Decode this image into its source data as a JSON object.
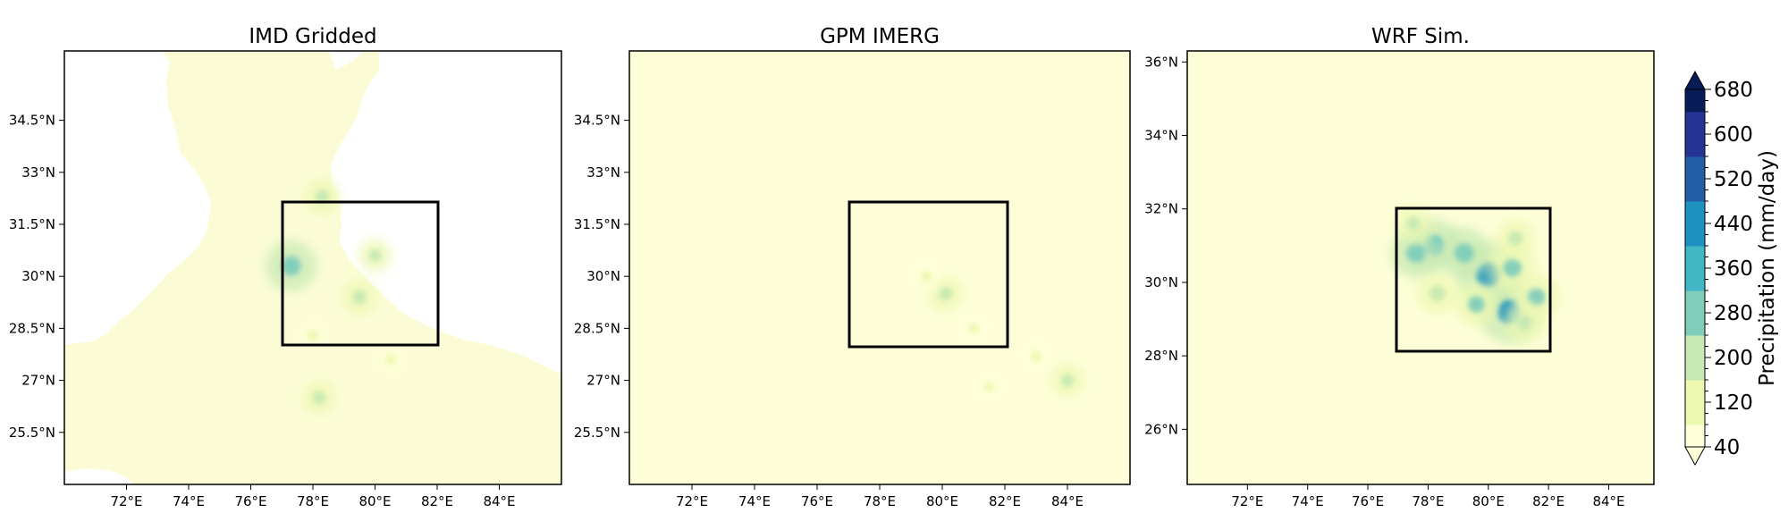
{
  "chart_data": [
    {
      "type": "heatmap",
      "title": "IMD Gridded",
      "xlim": [
        70,
        86
      ],
      "ylim": [
        24,
        36.5
      ],
      "x_ticks": [
        72,
        74,
        76,
        78,
        80,
        82,
        84
      ],
      "y_ticks": [
        25.5,
        27,
        28.5,
        30,
        31.5,
        33,
        34.5
      ],
      "x_tick_labels": [
        "72°E",
        "74°E",
        "76°E",
        "78°E",
        "80°E",
        "82°E",
        "84°E"
      ],
      "y_tick_labels": [
        "25.5°N",
        "27°N",
        "28.5°N",
        "30°N",
        "31.5°N",
        "33°N",
        "34.5°N"
      ],
      "box": {
        "lon": [
          77,
          82
        ],
        "lat": [
          28,
          32
        ]
      },
      "masked_region": "no data outside India land area (white)",
      "hotspots": [
        {
          "lon": 77.3,
          "lat": 30.3,
          "value": 300
        },
        {
          "lon": 78.3,
          "lat": 32.3,
          "value": 180
        },
        {
          "lon": 80.0,
          "lat": 30.6,
          "value": 160
        },
        {
          "lon": 79.5,
          "lat": 29.4,
          "value": 180
        },
        {
          "lon": 78.0,
          "lat": 28.3,
          "value": 140
        },
        {
          "lon": 80.5,
          "lat": 27.6,
          "value": 120
        },
        {
          "lon": 78.2,
          "lat": 26.5,
          "value": 160
        }
      ]
    },
    {
      "type": "heatmap",
      "title": "GPM IMERG",
      "xlim": [
        70,
        86
      ],
      "ylim": [
        24,
        36.5
      ],
      "x_ticks": [
        72,
        74,
        76,
        78,
        80,
        82,
        84
      ],
      "y_ticks": [
        25.5,
        27,
        28.5,
        30,
        31.5,
        33,
        34.5
      ],
      "x_tick_labels": [
        "72°E",
        "74°E",
        "76°E",
        "78°E",
        "80°E",
        "82°E",
        "84°E"
      ],
      "y_tick_labels": [
        "25.5°N",
        "27°N",
        "28.5°N",
        "30°N",
        "31.5°N",
        "33°N",
        "34.5°N"
      ],
      "box": {
        "lon": [
          77,
          82
        ],
        "lat": [
          28,
          32
        ]
      },
      "hotspots": [
        {
          "lon": 80.1,
          "lat": 29.5,
          "value": 180
        },
        {
          "lon": 79.5,
          "lat": 30.0,
          "value": 130
        },
        {
          "lon": 81.0,
          "lat": 28.5,
          "value": 120
        },
        {
          "lon": 83.0,
          "lat": 27.7,
          "value": 130
        },
        {
          "lon": 84.0,
          "lat": 27.0,
          "value": 160
        },
        {
          "lon": 81.5,
          "lat": 26.8,
          "value": 110
        }
      ]
    },
    {
      "type": "heatmap",
      "title": "WRF Sim.",
      "xlim": [
        70,
        85.5
      ],
      "ylim": [
        24.5,
        36.3
      ],
      "x_ticks": [
        72,
        74,
        76,
        78,
        80,
        82,
        84
      ],
      "y_ticks": [
        26,
        28,
        30,
        32,
        34,
        36
      ],
      "x_tick_labels": [
        "72°E",
        "74°E",
        "76°E",
        "78°E",
        "80°E",
        "82°E",
        "84°E"
      ],
      "y_tick_labels": [
        "26°N",
        "28°N",
        "30°N",
        "32°N",
        "34°N",
        "36°N"
      ],
      "box": {
        "lon": [
          77,
          82
        ],
        "lat": [
          28,
          32
        ]
      },
      "hotspots": [
        {
          "lon": 80.0,
          "lat": 30.2,
          "value": 420
        },
        {
          "lon": 80.7,
          "lat": 29.2,
          "value": 400
        },
        {
          "lon": 78.2,
          "lat": 31.0,
          "value": 320
        },
        {
          "lon": 77.6,
          "lat": 30.8,
          "value": 300
        },
        {
          "lon": 79.2,
          "lat": 30.8,
          "value": 300
        },
        {
          "lon": 80.8,
          "lat": 30.4,
          "value": 280
        },
        {
          "lon": 81.6,
          "lat": 29.6,
          "value": 260
        },
        {
          "lon": 79.6,
          "lat": 29.4,
          "value": 240
        },
        {
          "lon": 78.3,
          "lat": 29.7,
          "value": 220
        },
        {
          "lon": 81.2,
          "lat": 28.9,
          "value": 220
        },
        {
          "lon": 77.5,
          "lat": 31.6,
          "value": 180
        },
        {
          "lon": 80.9,
          "lat": 31.2,
          "value": 200
        }
      ]
    }
  ],
  "colorbar": {
    "label": "Precipitation (mm/day)",
    "min": 40,
    "max": 680,
    "tick_values": [
      40,
      120,
      200,
      280,
      360,
      440,
      520,
      600,
      680
    ],
    "tick_labels": [
      "40",
      "120",
      "200",
      "280",
      "360",
      "440",
      "520",
      "600",
      "680"
    ],
    "extend": "both",
    "colormap": "YlGnBu",
    "colors": [
      "#ffffd9",
      "#edf8b1",
      "#c7e9b4",
      "#7fcdbb",
      "#41b6c4",
      "#1d91c0",
      "#225ea8",
      "#253494",
      "#081d58"
    ]
  }
}
